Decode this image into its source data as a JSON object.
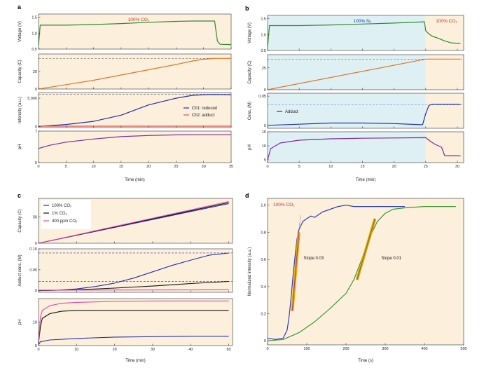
{
  "colors": {
    "co2_bg": "#fcefdc",
    "n2_bg": "#dff0f5",
    "voltage": "#2e8b2e",
    "capacity": "#d9782a",
    "ch1": "#2230a8",
    "ch2": "#d9534f",
    "ph": "#7b2a9a",
    "co2_100": "#2230a8",
    "co2_1": "#111111",
    "co2_400": "#d44fb0",
    "dash_gray": "#555555",
    "slope_fit": "#e3a516"
  },
  "chart_data": [
    {
      "type": "line",
      "panel_label": "a",
      "title": "100% CO₂",
      "xlabel": "Time (min)",
      "xlim": [
        0,
        35
      ],
      "xticks": [
        "0",
        "5",
        "10",
        "15",
        "20",
        "25",
        "30",
        "35"
      ],
      "subplots": [
        {
          "ylabel": "Voltage (V)",
          "ylim": [
            0.5,
            1.6
          ],
          "yticks": [
            "0.5",
            "1.0",
            "1.5"
          ],
          "series": [
            {
              "name": "voltage",
              "x": [
                0,
                0.3,
                5,
                10,
                15,
                20,
                25,
                28,
                32,
                32.5,
                33,
                35
              ],
              "y": [
                0.62,
                1.25,
                1.25,
                1.27,
                1.3,
                1.34,
                1.37,
                1.38,
                1.38,
                0.75,
                0.65,
                0.64
              ]
            }
          ]
        },
        {
          "ylabel": "Capacity (C)",
          "ylim": [
            0,
            40
          ],
          "yticks": [
            "0",
            "20"
          ],
          "hline": 35,
          "series": [
            {
              "name": "capacity",
              "x": [
                0,
                5,
                10,
                15,
                20,
                25,
                28,
                30,
                32,
                35
              ],
              "y": [
                0,
                5,
                10,
                16,
                22,
                28,
                32,
                34,
                35,
                35
              ]
            }
          ]
        },
        {
          "ylabel": "Intensity (a.u.)",
          "ylim": [
            -200,
            6000
          ],
          "yticks": [
            "0",
            "5,000"
          ],
          "hline": 5700,
          "series": [
            {
              "name": "Ch1: reduced",
              "x": [
                0,
                5,
                10,
                15,
                20,
                25,
                28,
                30,
                32,
                35
              ],
              "y": [
                0,
                350,
                900,
                2000,
                3800,
                5000,
                5500,
                5600,
                5650,
                5600
              ]
            },
            {
              "name": "Ch2: adduct",
              "x": [
                0,
                35
              ],
              "y": [
                50,
                50
              ]
            }
          ],
          "legend": [
            "Ch1: reduced",
            "Ch2: adduct"
          ]
        },
        {
          "ylabel": "pH",
          "ylim": [
            5,
            7
          ],
          "yticks": [
            "5",
            "7"
          ],
          "series": [
            {
              "name": "pH",
              "x": [
                0,
                2,
                5,
                10,
                15,
                20,
                25,
                30,
                35
              ],
              "y": [
                5.9,
                6.1,
                6.3,
                6.5,
                6.65,
                6.72,
                6.76,
                6.77,
                6.77
              ]
            }
          ]
        }
      ]
    },
    {
      "type": "line",
      "panel_label": "b",
      "regions": [
        {
          "label": "100% N₂",
          "from": 0,
          "to": 25
        },
        {
          "label": "100% CO₂",
          "from": 25,
          "to": 31
        }
      ],
      "xlabel": "Time (min)",
      "xlim": [
        0,
        31
      ],
      "xticks": [
        "0",
        "5",
        "10",
        "15",
        "20",
        "25",
        "30"
      ],
      "subplots": [
        {
          "ylabel": "Voltage (V)",
          "ylim": [
            0.5,
            1.6
          ],
          "yticks": [
            "0.5",
            "1.0",
            "1.5"
          ],
          "series": [
            {
              "name": "voltage",
              "x": [
                0,
                0.3,
                5,
                10,
                15,
                20,
                24.8,
                25,
                25.5,
                26,
                27,
                28,
                29,
                30.5
              ],
              "y": [
                0.6,
                1.28,
                1.28,
                1.3,
                1.33,
                1.36,
                1.4,
                1.12,
                1.02,
                0.95,
                0.88,
                0.8,
                0.74,
                0.72
              ]
            }
          ]
        },
        {
          "ylabel": "Capacity (C)",
          "ylim": [
            0,
            40
          ],
          "yticks": [
            "0",
            "25"
          ],
          "hline": 35,
          "series": [
            {
              "name": "capacity",
              "x": [
                0,
                25,
                30.5
              ],
              "y": [
                0,
                35,
                35
              ]
            }
          ]
        },
        {
          "ylabel": "Conc. (M)",
          "ylim": [
            -0.005,
            0.055
          ],
          "yticks": [
            "0",
            "0.05"
          ],
          "hline": 0.035,
          "series": [
            {
              "name": "Adduct",
              "x": [
                0,
                5,
                10,
                15,
                20,
                24.5,
                25,
                25.5,
                26,
                27,
                30.5
              ],
              "y": [
                0,
                0.002,
                0.004,
                0.004,
                0.003,
                0.001,
                0.02,
                0.034,
                0.036,
                0.036,
                0.036
              ]
            }
          ],
          "legend": [
            "Adduct"
          ]
        },
        {
          "ylabel": "pH",
          "ylim": [
            4,
            15
          ],
          "yticks": [
            "5",
            "10",
            "15"
          ],
          "series": [
            {
              "name": "pH",
              "x": [
                0,
                0.5,
                2,
                5,
                10,
                15,
                20,
                25,
                25.8,
                26.5,
                27.5,
                28,
                30.5
              ],
              "y": [
                5,
                9,
                11,
                12,
                12.5,
                12.7,
                12.8,
                12.9,
                11.5,
                10.5,
                9.5,
                6.5,
                6.4
              ]
            }
          ]
        }
      ]
    },
    {
      "type": "line",
      "panel_label": "c",
      "xlabel": "Time (min)",
      "xlim": [
        0,
        51
      ],
      "xticks": [
        "0",
        "10",
        "20",
        "30",
        "40",
        "50"
      ],
      "legend": [
        "100% CO₂",
        "1% CO₂",
        "400 ppm CO₂"
      ],
      "subplots": [
        {
          "ylabel": "Capacity (C)",
          "ylim": [
            0,
            85
          ],
          "yticks": [
            "0",
            "50"
          ],
          "series": [
            {
              "name": "100% CO₂",
              "x": [
                0,
                50
              ],
              "y": [
                0,
                75
              ]
            },
            {
              "name": "1% CO₂",
              "x": [
                0,
                50
              ],
              "y": [
                0,
                77
              ]
            },
            {
              "name": "400 ppm CO₂",
              "x": [
                0,
                50
              ],
              "y": [
                0,
                79
              ]
            }
          ]
        },
        {
          "ylabel": "Adduct conc. (M)",
          "ylim": [
            -0.004,
            0.1
          ],
          "yticks": [
            "0",
            "0.05",
            "0.10"
          ],
          "hlines": [
            0.09,
            0.022
          ],
          "series": [
            {
              "name": "100% CO₂",
              "x": [
                0,
                5,
                10,
                15,
                20,
                25,
                30,
                35,
                40,
                45,
                50
              ],
              "y": [
                0,
                0.001,
                0.004,
                0.01,
                0.018,
                0.03,
                0.045,
                0.06,
                0.073,
                0.085,
                0.09
              ]
            },
            {
              "name": "1% CO₂",
              "x": [
                0,
                10,
                20,
                30,
                40,
                50
              ],
              "y": [
                0,
                0.002,
                0.006,
                0.011,
                0.017,
                0.022
              ]
            },
            {
              "name": "400 ppm CO₂",
              "x": [
                0,
                50
              ],
              "y": [
                0.001,
                0.002
              ]
            }
          ]
        },
        {
          "ylabel": "pH",
          "ylim": [
            5,
            15
          ],
          "yticks": [
            "5",
            "10"
          ],
          "series": [
            {
              "name": "100% CO₂",
              "x": [
                0,
                0.5,
                3,
                10,
                20,
                30,
                40,
                50
              ],
              "y": [
                5.2,
                5.8,
                6.2,
                6.5,
                6.8,
                6.9,
                7,
                7
              ]
            },
            {
              "name": "1% CO₂",
              "x": [
                0,
                0.5,
                1,
                3,
                6,
                10,
                20,
                30,
                40,
                50
              ],
              "y": [
                5.5,
                9,
                10.8,
                11.8,
                12.3,
                12.5,
                12.5,
                12.5,
                12.5,
                12.5
              ]
            },
            {
              "name": "400 ppm CO₂",
              "x": [
                0,
                0.5,
                1,
                3,
                6,
                10,
                20,
                30,
                40,
                50
              ],
              "y": [
                5.8,
                11,
                12.5,
                13.5,
                14,
                14.2,
                14.4,
                14.5,
                14.5,
                14.5
              ]
            }
          ]
        }
      ]
    },
    {
      "type": "line",
      "panel_label": "d",
      "title": "100% CO₂",
      "xlabel": "Time (s)",
      "ylabel": "Normalized intensity (a.u.)",
      "xlim": [
        0,
        500
      ],
      "ylim": [
        -0.03,
        1.05
      ],
      "xticks": [
        "0",
        "100",
        "200",
        "300",
        "400",
        "500"
      ],
      "yticks": [
        "0",
        "0.2",
        "0.4",
        "0.6",
        "0.8",
        "1.0"
      ],
      "series": [
        {
          "name": "blue",
          "x": [
            0,
            20,
            40,
            50,
            55,
            60,
            65,
            70,
            75,
            80,
            85,
            90,
            100,
            110,
            120,
            140,
            160,
            180,
            200,
            220,
            250,
            300,
            350
          ],
          "y": [
            0.02,
            0.01,
            0.02,
            0.08,
            0.18,
            0.32,
            0.48,
            0.62,
            0.75,
            0.82,
            0.85,
            0.88,
            0.9,
            0.92,
            0.91,
            0.95,
            0.97,
            0.99,
            1.0,
            0.99,
            0.99,
            0.99,
            0.99
          ]
        },
        {
          "name": "green",
          "x": [
            0,
            40,
            80,
            120,
            160,
            200,
            220,
            240,
            260,
            280,
            300,
            320,
            350,
            400,
            450,
            480
          ],
          "y": [
            0,
            0.01,
            0.06,
            0.14,
            0.24,
            0.35,
            0.45,
            0.6,
            0.76,
            0.88,
            0.94,
            0.97,
            0.98,
            0.99,
            0.99,
            0.99
          ]
        }
      ],
      "fits": [
        {
          "label": "Slope 0.03",
          "x": [
            63,
            80
          ],
          "y": [
            0.22,
            0.8
          ]
        },
        {
          "label": "Slope 0.01",
          "x": [
            228,
            274
          ],
          "y": [
            0.45,
            0.9
          ]
        }
      ]
    }
  ]
}
